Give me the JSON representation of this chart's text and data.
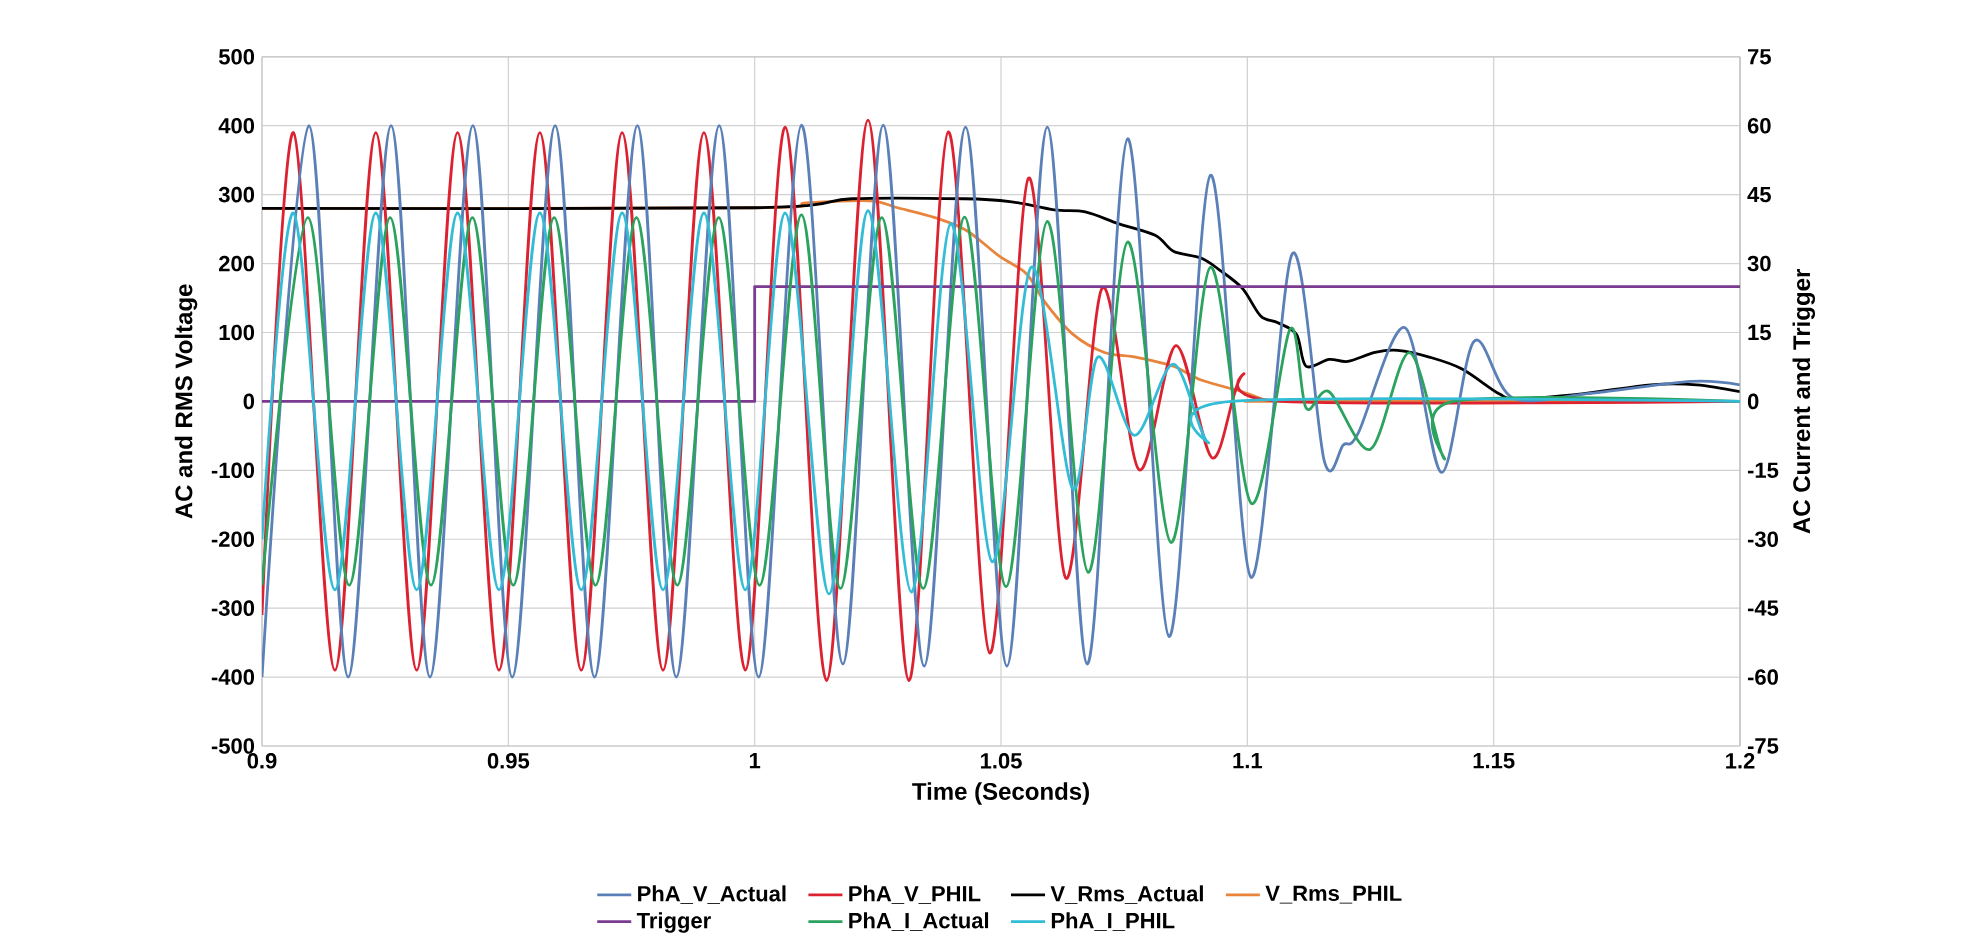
{
  "chart_data": {
    "type": "line",
    "xlabel": "Time (Seconds)",
    "ylabel": "AC and RMS Voltage",
    "y2label": "AC Current and Trigger",
    "xlim": [
      0.9,
      1.2
    ],
    "xticks": [
      0.9,
      0.95,
      1,
      1.05,
      1.1,
      1.15,
      1.2
    ],
    "ylim": [
      -500,
      500
    ],
    "yticks": [
      -500,
      -400,
      -300,
      -200,
      -100,
      0,
      100,
      200,
      300,
      400,
      500
    ],
    "y2lim": [
      -75,
      75
    ],
    "y2ticks": [
      -75,
      -60,
      -45,
      -30,
      -15,
      0,
      15,
      30,
      45,
      60,
      75
    ],
    "grid": true,
    "legend": "bottom",
    "line_style": "solid",
    "series": [
      {
        "name": "PhA_V_Actual",
        "color": "#5b80b8",
        "x": [
          0.9,
          0.9095,
          0.9175,
          0.9262,
          0.9341,
          0.9428,
          0.9508,
          0.9595,
          0.9675,
          0.9762,
          0.9841,
          0.9928,
          1.0008,
          1.0095,
          1.0179,
          1.0261,
          1.0344,
          1.0428,
          1.0512,
          1.0594,
          1.0675,
          1.0757,
          1.0841,
          1.0925,
          1.1007,
          1.1091,
          1.1156,
          1.1195,
          1.1225,
          1.132,
          1.1394,
          1.146,
          1.1539,
          1.17,
          1.19,
          1.2
        ],
        "values": [
          -400,
          400,
          -400,
          400,
          -400,
          400,
          -400,
          400,
          -400,
          400,
          -400,
          400,
          -400,
          401,
          -381,
          401,
          -384,
          398,
          -384,
          398,
          -381,
          381,
          -341,
          328,
          -255,
          214,
          -86,
          -63,
          -46,
          107,
          -103,
          87,
          5,
          12,
          29,
          24
        ]
      },
      {
        "name": "PhA_V_PHIL",
        "color": "#dc2230",
        "x": [
          0.9,
          0.9064,
          0.9148,
          0.9231,
          0.9314,
          0.9397,
          0.9481,
          0.9564,
          0.9648,
          0.9731,
          0.9814,
          0.9897,
          0.9981,
          1.0062,
          1.0146,
          1.023,
          1.0313,
          1.0393,
          1.0477,
          1.0556,
          1.0631,
          1.0705,
          1.078,
          1.0855,
          1.0929,
          1.099,
          1.107,
          1.2
        ],
        "values": [
          -310,
          390,
          -390,
          390,
          -390,
          390,
          -390,
          390,
          -390,
          390,
          -390,
          390,
          -390,
          398,
          -405,
          408,
          -405,
          391,
          -365,
          324,
          -256,
          164,
          -99,
          81,
          -82,
          38,
          0,
          0
        ]
      },
      {
        "name": "V_Rms_Actual",
        "color": "#000000",
        "x": [
          0.9,
          1.0,
          1.0197,
          1.0425,
          1.0518,
          1.0608,
          1.0671,
          1.0738,
          1.0813,
          1.085,
          1.0906,
          1.0943,
          1.099,
          1.1027,
          1.1062,
          1.11,
          1.1119,
          1.1166,
          1.1204,
          1.1259,
          1.1305,
          1.1371,
          1.1436,
          1.1511,
          1.1548,
          1.1679,
          1.1819,
          1.1912,
          1.2
        ],
        "values": [
          280,
          281,
          294,
          294,
          290,
          278,
          275,
          258,
          241,
          218,
          208,
          191,
          164,
          124,
          114,
          97,
          51,
          61,
          58,
          71,
          74,
          64,
          47,
          11,
          4,
          11,
          24,
          24,
          14
        ]
      },
      {
        "name": "V_Rms_PHIL",
        "color": "#e8843c",
        "x": [
          0.9,
          1.0,
          1.0104,
          1.0235,
          1.029,
          1.0364,
          1.043,
          1.0496,
          1.0552,
          1.0589,
          1.0645,
          1.071,
          1.0775,
          1.085,
          1.0906,
          1.099,
          1.1036,
          1.1066,
          1.2
        ],
        "values": [
          280,
          281,
          288,
          291,
          281,
          267,
          248,
          211,
          185,
          144,
          98,
          71,
          64,
          51,
          31,
          14,
          2,
          0,
          0
        ]
      },
      {
        "name": "Trigger",
        "color": "#7b3b90",
        "type": "step",
        "axis": "y2",
        "x": [
          0.9,
          1.0,
          1.2
        ],
        "values": [
          0,
          25,
          25
        ]
      },
      {
        "name": "PhA_I_Actual",
        "color": "#2ba35f",
        "axis": "y2",
        "x": [
          0.9,
          0.9093,
          0.9177,
          0.926,
          0.9343,
          0.9427,
          0.951,
          0.9593,
          0.9677,
          0.976,
          0.9843,
          0.9927,
          1.001,
          1.0095,
          1.0174,
          1.0258,
          1.0342,
          1.0426,
          1.051,
          1.0594,
          1.0677,
          1.0757,
          1.0845,
          1.0925,
          1.1008,
          1.1086,
          1.1119,
          1.1166,
          1.125,
          1.1329,
          1.1399,
          1.1418,
          1.2
        ],
        "values": [
          -40,
          40,
          -40,
          40,
          -40,
          40,
          -40,
          40,
          -40,
          40,
          -40,
          40,
          -40,
          40.6,
          -40.7,
          40,
          -40.7,
          40.1,
          -40.3,
          39.2,
          -37.2,
          34.7,
          -30.7,
          29.2,
          -22.2,
          15.6,
          -1.4,
          2.1,
          -10.4,
          10.6,
          -12.4,
          0,
          0
        ]
      },
      {
        "name": "PhA_I_PHIL",
        "color": "#33bcd6",
        "axis": "y2",
        "x": [
          0.9,
          0.9064,
          0.9148,
          0.9231,
          0.9314,
          0.9397,
          0.9481,
          0.9564,
          0.9648,
          0.9731,
          0.9814,
          0.9897,
          0.9981,
          1.0062,
          1.0151,
          1.023,
          1.0318,
          1.0398,
          1.0482,
          1.0561,
          1.0645,
          1.0696,
          1.0771,
          1.085,
          1.092,
          1.0968,
          1.2
        ],
        "values": [
          -30,
          41,
          -41,
          41,
          -41,
          41,
          -41,
          41,
          -41,
          41,
          -41,
          41,
          -41,
          41,
          -41.9,
          41.5,
          -41.5,
          38.7,
          -34.9,
          29.2,
          -18.9,
          9.6,
          -7.4,
          8.1,
          -8.9,
          0,
          0
        ]
      }
    ]
  }
}
